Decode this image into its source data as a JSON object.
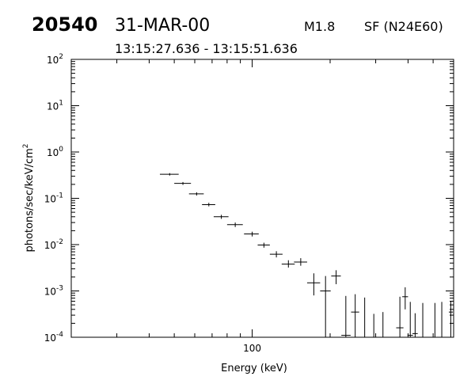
{
  "header": {
    "event_id": "20540",
    "date": "31-MAR-00",
    "goes_class": "M1.8",
    "flare_info": "SF (N24E60)",
    "time_range": "13:15:27.636 - 13:15:51.636"
  },
  "chart_data": {
    "type": "scatter",
    "title": "",
    "xlabel": "Energy (keV)",
    "ylabel": "photons/sec/keV/cm",
    "ylabel_superscript": "2",
    "x_scale": "log",
    "y_scale": "log",
    "xlim": [
      20,
      600
    ],
    "ylim": [
      0.0001,
      100
    ],
    "x_tick_labels": [
      {
        "value": 100,
        "label": "100"
      }
    ],
    "y_tick_labels": [
      {
        "value": 0.0001,
        "base": "10",
        "exp": "-4"
      },
      {
        "value": 0.001,
        "base": "10",
        "exp": "-3"
      },
      {
        "value": 0.01,
        "base": "10",
        "exp": "-2"
      },
      {
        "value": 0.1,
        "base": "10",
        "exp": "-1"
      },
      {
        "value": 1,
        "base": "10",
        "exp": "0"
      },
      {
        "value": 10,
        "base": "10",
        "exp": "1"
      },
      {
        "value": 100,
        "base": "10",
        "exp": "2"
      }
    ],
    "grid": false,
    "legend": "none",
    "points": [
      {
        "x": 48.0,
        "y": 0.33,
        "xlo": 44,
        "xhi": 52,
        "ylo": 0.31,
        "yhi": 0.35
      },
      {
        "x": 54.0,
        "y": 0.21,
        "xlo": 50,
        "xhi": 58,
        "ylo": 0.195,
        "yhi": 0.225
      },
      {
        "x": 61.0,
        "y": 0.125,
        "xlo": 57,
        "xhi": 65,
        "ylo": 0.115,
        "yhi": 0.135
      },
      {
        "x": 68.0,
        "y": 0.073,
        "xlo": 64,
        "xhi": 72,
        "ylo": 0.067,
        "yhi": 0.08
      },
      {
        "x": 76.0,
        "y": 0.04,
        "xlo": 71,
        "xhi": 81,
        "ylo": 0.036,
        "yhi": 0.044
      },
      {
        "x": 86.0,
        "y": 0.027,
        "xlo": 80,
        "xhi": 92,
        "ylo": 0.024,
        "yhi": 0.03
      },
      {
        "x": 100.0,
        "y": 0.017,
        "xlo": 93,
        "xhi": 106,
        "ylo": 0.015,
        "yhi": 0.019
      },
      {
        "x": 111.0,
        "y": 0.0098,
        "xlo": 105,
        "xhi": 117,
        "ylo": 0.0086,
        "yhi": 0.011
      },
      {
        "x": 124.0,
        "y": 0.0062,
        "xlo": 117,
        "xhi": 131,
        "ylo": 0.0053,
        "yhi": 0.0072
      },
      {
        "x": 138.0,
        "y": 0.0038,
        "xlo": 130,
        "xhi": 146,
        "ylo": 0.0032,
        "yhi": 0.0046
      },
      {
        "x": 154.0,
        "y": 0.0042,
        "xlo": 145,
        "xhi": 163,
        "ylo": 0.0035,
        "yhi": 0.0051
      },
      {
        "x": 173.0,
        "y": 0.0015,
        "xlo": 163,
        "xhi": 183,
        "ylo": 0.0008,
        "yhi": 0.0024
      },
      {
        "x": 192.0,
        "y": 0.001,
        "xlo": 183,
        "xhi": 201,
        "ylo": 0.0001,
        "yhi": 0.0021
      },
      {
        "x": 211.0,
        "y": 0.0021,
        "xlo": 202,
        "xhi": 220,
        "ylo": 0.0014,
        "yhi": 0.0028
      },
      {
        "x": 230.0,
        "y": 0.00011,
        "xlo": 221,
        "xhi": 240,
        "ylo": 0.0001,
        "yhi": 0.00078
      },
      {
        "x": 250.0,
        "y": 0.00035,
        "xlo": 241,
        "xhi": 259,
        "ylo": 0.0001,
        "yhi": 0.00085
      },
      {
        "x": 272.0,
        "y": 0.0001,
        "xlo": 262,
        "xhi": 282,
        "ylo": 0.0001,
        "yhi": 0.00072
      },
      {
        "x": 295.0,
        "y": 0.0001,
        "xlo": 285,
        "xhi": 305,
        "ylo": 0.0001,
        "yhi": 0.00032
      },
      {
        "x": 320.0,
        "y": 0.0001,
        "xlo": 310,
        "xhi": 330,
        "ylo": 0.0001,
        "yhi": 0.00035
      },
      {
        "x": 372.0,
        "y": 0.00016,
        "xlo": 360,
        "xhi": 384,
        "ylo": 0.0001,
        "yhi": 0.00075
      },
      {
        "x": 390.0,
        "y": 0.00075,
        "xlo": 380,
        "xhi": 400,
        "ylo": 0.0004,
        "yhi": 0.0012
      },
      {
        "x": 408.0,
        "y": 0.00011,
        "xlo": 398,
        "xhi": 418,
        "ylo": 0.0001,
        "yhi": 0.00058
      },
      {
        "x": 426.0,
        "y": 0.00012,
        "xlo": 416,
        "xhi": 436,
        "ylo": 0.0001,
        "yhi": 0.00033
      },
      {
        "x": 456.0,
        "y": 0.0001,
        "xlo": 446,
        "xhi": 466,
        "ylo": 0.0001,
        "yhi": 0.00055
      },
      {
        "x": 508.0,
        "y": 0.0001,
        "xlo": 498,
        "xhi": 518,
        "ylo": 0.0001,
        "yhi": 0.00055
      },
      {
        "x": 540.0,
        "y": 0.0001,
        "xlo": 530,
        "xhi": 550,
        "ylo": 0.0001,
        "yhi": 0.00058
      },
      {
        "x": 585.0,
        "y": 0.00035,
        "xlo": 575,
        "xhi": 596,
        "ylo": 0.0001,
        "yhi": 0.0006
      }
    ]
  }
}
